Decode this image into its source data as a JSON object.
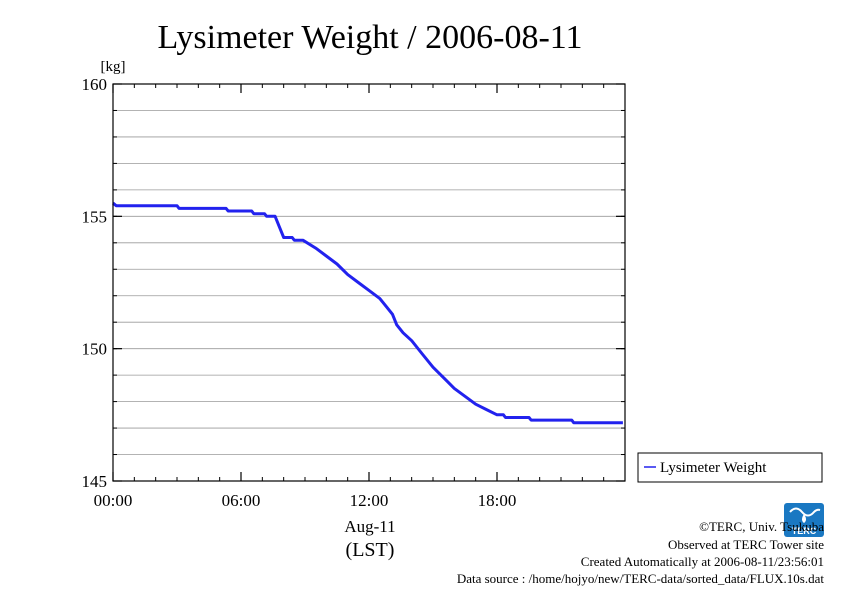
{
  "chart_data": {
    "type": "line",
    "title": "Lysimeter Weight / 2006-08-11",
    "ylabel": "[kg]",
    "xlabel_date": "Aug-11",
    "xlabel_tz": "(LST)",
    "ylim": [
      145,
      160
    ],
    "xlim_hours": [
      0,
      24
    ],
    "y_ticks": [
      145,
      150,
      155,
      160
    ],
    "y_minor_step": 1,
    "x_ticks": [
      {
        "hour": 0,
        "label": "00:00"
      },
      {
        "hour": 6,
        "label": "06:00"
      },
      {
        "hour": 12,
        "label": "12:00"
      },
      {
        "hour": 18,
        "label": "18:00"
      }
    ],
    "grid": true,
    "legend_position": "right",
    "series": [
      {
        "name": "Lysimeter Weight",
        "color": "#2222ee",
        "points": [
          [
            0.0,
            155.5
          ],
          [
            0.15,
            155.4
          ],
          [
            3.0,
            155.4
          ],
          [
            3.1,
            155.3
          ],
          [
            5.3,
            155.3
          ],
          [
            5.4,
            155.2
          ],
          [
            6.5,
            155.2
          ],
          [
            6.6,
            155.1
          ],
          [
            7.1,
            155.1
          ],
          [
            7.2,
            155.0
          ],
          [
            7.6,
            155.0
          ],
          [
            7.8,
            154.6
          ],
          [
            8.0,
            154.2
          ],
          [
            8.4,
            154.2
          ],
          [
            8.5,
            154.1
          ],
          [
            8.9,
            154.1
          ],
          [
            9.5,
            153.8
          ],
          [
            10.0,
            153.5
          ],
          [
            10.5,
            153.2
          ],
          [
            11.0,
            152.8
          ],
          [
            11.5,
            152.5
          ],
          [
            12.0,
            152.2
          ],
          [
            12.5,
            151.9
          ],
          [
            12.8,
            151.6
          ],
          [
            13.1,
            151.3
          ],
          [
            13.3,
            150.9
          ],
          [
            13.6,
            150.6
          ],
          [
            14.0,
            150.3
          ],
          [
            14.5,
            149.8
          ],
          [
            15.0,
            149.3
          ],
          [
            15.5,
            148.9
          ],
          [
            16.0,
            148.5
          ],
          [
            16.5,
            148.2
          ],
          [
            17.0,
            147.9
          ],
          [
            17.5,
            147.7
          ],
          [
            18.0,
            147.5
          ],
          [
            18.3,
            147.5
          ],
          [
            18.4,
            147.4
          ],
          [
            19.5,
            147.4
          ],
          [
            19.6,
            147.3
          ],
          [
            21.5,
            147.3
          ],
          [
            21.6,
            147.2
          ],
          [
            23.9,
            147.2
          ]
        ]
      }
    ]
  },
  "footer": {
    "copyright": "©TERC, Univ. Tsukuba",
    "observed": "Observed at TERC Tower site",
    "created": "Created Automatically at 2006-08-11/23:56:01",
    "source": "Data source : /home/hojyo/new/TERC-data/sorted_data/FLUX.10s.dat",
    "logo_text": "TERC",
    "logo_color": "#1a78c2"
  }
}
